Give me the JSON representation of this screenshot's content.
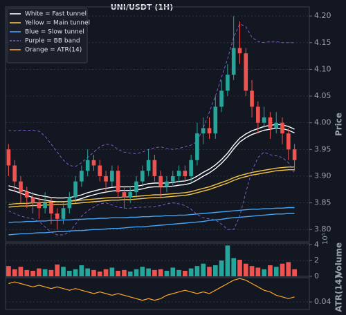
{
  "chart_data": [
    {
      "type": "candlestick",
      "title": "UNI/USDT (1H)",
      "y_label": "Price",
      "grid": true,
      "legend": "upper left",
      "up_color": "#26a69a",
      "down_color": "#ef5350",
      "ylim": [
        3.777,
        4.217
      ],
      "yticks": [
        {
          "value": 3.8,
          "label": "3.80"
        },
        3.85,
        {
          "value": 3.9,
          "label": "3.90"
        },
        3.95,
        {
          "value": 4.0,
          "label": "4.00"
        },
        4.05,
        {
          "value": 4.1,
          "label": "4.10"
        },
        4.15,
        {
          "value": 4.2,
          "label": "4.20"
        }
      ],
      "open": [
        3.95,
        3.92,
        3.89,
        3.87,
        3.86,
        3.85,
        3.84,
        3.85,
        3.83,
        3.82,
        3.84,
        3.86,
        3.89,
        3.91,
        3.93,
        3.92,
        3.9,
        3.89,
        3.91,
        3.87,
        3.86,
        3.87,
        3.89,
        3.91,
        3.93,
        3.9,
        3.88,
        3.89,
        3.9,
        3.91,
        3.9,
        3.93,
        3.98,
        3.99,
        3.98,
        4.03,
        4.06,
        4.09,
        4.14,
        4.13,
        4.06,
        4.03,
        4.0,
        4.01,
        3.99,
        4.0,
        3.98,
        3.95
      ],
      "high": [
        3.96,
        3.93,
        3.9,
        3.88,
        3.87,
        3.86,
        3.87,
        3.86,
        3.84,
        3.85,
        3.87,
        3.9,
        3.92,
        3.95,
        3.94,
        3.93,
        3.91,
        3.92,
        3.92,
        3.88,
        3.88,
        3.9,
        3.92,
        3.95,
        3.94,
        3.91,
        3.9,
        3.91,
        3.92,
        3.92,
        3.94,
        4.0,
        4.01,
        4.01,
        4.05,
        4.08,
        4.11,
        4.2,
        4.19,
        4.14,
        4.08,
        4.04,
        4.03,
        4.02,
        4.02,
        4.01,
        3.99,
        3.96
      ],
      "low": [
        3.9,
        3.87,
        3.85,
        3.84,
        3.83,
        3.82,
        3.83,
        3.81,
        3.8,
        3.81,
        3.83,
        3.85,
        3.88,
        3.9,
        3.91,
        3.89,
        3.87,
        3.88,
        3.86,
        3.84,
        3.85,
        3.86,
        3.88,
        3.9,
        3.89,
        3.86,
        3.87,
        3.88,
        3.89,
        3.89,
        3.89,
        3.92,
        3.96,
        3.97,
        3.97,
        4.02,
        4.05,
        4.08,
        4.11,
        4.05,
        4.01,
        3.98,
        3.99,
        3.97,
        3.98,
        3.96,
        3.93,
        3.91
      ],
      "close": [
        3.92,
        3.89,
        3.87,
        3.86,
        3.85,
        3.84,
        3.85,
        3.83,
        3.82,
        3.84,
        3.86,
        3.89,
        3.91,
        3.93,
        3.92,
        3.9,
        3.89,
        3.91,
        3.87,
        3.86,
        3.87,
        3.89,
        3.91,
        3.93,
        3.9,
        3.88,
        3.89,
        3.9,
        3.91,
        3.9,
        3.93,
        3.98,
        3.99,
        3.98,
        4.03,
        4.06,
        4.09,
        4.14,
        4.13,
        4.06,
        4.03,
        4.0,
        4.01,
        3.99,
        4.0,
        3.98,
        3.95,
        3.93
      ],
      "overlays": [
        {
          "name": "White = Fast tunnel",
          "color": "#ffffff",
          "dashed": false,
          "upper": [
            3.882,
            3.879,
            3.875,
            3.871,
            3.867,
            3.864,
            3.862,
            3.86,
            3.859,
            3.859,
            3.86,
            3.862,
            3.865,
            3.869,
            3.872,
            3.875,
            3.877,
            3.879,
            3.88,
            3.88,
            3.88,
            3.881,
            3.883,
            3.886,
            3.887,
            3.887,
            3.887,
            3.888,
            3.89,
            3.891,
            3.894,
            3.9,
            3.907,
            3.913,
            3.921,
            3.931,
            3.943,
            3.958,
            3.971,
            3.979,
            3.985,
            3.989,
            3.993,
            3.995,
            3.997,
            3.996,
            3.993,
            3.988
          ],
          "lower": [
            3.875,
            3.872,
            3.868,
            3.864,
            3.86,
            3.857,
            3.855,
            3.853,
            3.852,
            3.852,
            3.853,
            3.855,
            3.858,
            3.862,
            3.865,
            3.868,
            3.87,
            3.872,
            3.873,
            3.873,
            3.873,
            3.874,
            3.876,
            3.879,
            3.88,
            3.88,
            3.88,
            3.881,
            3.883,
            3.884,
            3.887,
            3.893,
            3.9,
            3.906,
            3.914,
            3.924,
            3.936,
            3.951,
            3.964,
            3.972,
            3.978,
            3.982,
            3.986,
            3.988,
            3.99,
            3.989,
            3.986,
            3.981
          ]
        },
        {
          "name": "Yellow = Main tunnel",
          "color": "#f5c542",
          "dashed": false,
          "upper": [
            3.847,
            3.848,
            3.849,
            3.849,
            3.85,
            3.85,
            3.851,
            3.851,
            3.852,
            3.852,
            3.853,
            3.854,
            3.855,
            3.856,
            3.857,
            3.858,
            3.859,
            3.86,
            3.86,
            3.861,
            3.861,
            3.862,
            3.863,
            3.864,
            3.865,
            3.865,
            3.866,
            3.867,
            3.868,
            3.869,
            3.871,
            3.874,
            3.877,
            3.88,
            3.884,
            3.888,
            3.892,
            3.897,
            3.901,
            3.904,
            3.907,
            3.909,
            3.911,
            3.913,
            3.915,
            3.916,
            3.917,
            3.917
          ],
          "lower": [
            3.842,
            3.843,
            3.844,
            3.844,
            3.845,
            3.845,
            3.846,
            3.846,
            3.847,
            3.847,
            3.848,
            3.849,
            3.85,
            3.851,
            3.852,
            3.853,
            3.854,
            3.855,
            3.855,
            3.856,
            3.856,
            3.857,
            3.858,
            3.859,
            3.86,
            3.86,
            3.861,
            3.862,
            3.863,
            3.864,
            3.866,
            3.869,
            3.872,
            3.875,
            3.879,
            3.883,
            3.887,
            3.892,
            3.896,
            3.899,
            3.902,
            3.904,
            3.906,
            3.908,
            3.91,
            3.911,
            3.912,
            3.912
          ]
        },
        {
          "name": "Blue = Slow tunnel",
          "color": "#42a5f5",
          "dashed": false,
          "upper": [
            3.813,
            3.814,
            3.814,
            3.815,
            3.815,
            3.816,
            3.816,
            3.817,
            3.817,
            3.818,
            3.818,
            3.819,
            3.819,
            3.82,
            3.82,
            3.821,
            3.821,
            3.822,
            3.822,
            3.822,
            3.823,
            3.823,
            3.824,
            3.824,
            3.825,
            3.825,
            3.826,
            3.826,
            3.827,
            3.827,
            3.828,
            3.829,
            3.83,
            3.831,
            3.832,
            3.833,
            3.834,
            3.835,
            3.836,
            3.837,
            3.838,
            3.838,
            3.839,
            3.839,
            3.84,
            3.84,
            3.841,
            3.841
          ],
          "lower": [
            3.79,
            3.791,
            3.792,
            3.792,
            3.793,
            3.794,
            3.794,
            3.795,
            3.796,
            3.796,
            3.797,
            3.798,
            3.798,
            3.799,
            3.8,
            3.8,
            3.801,
            3.802,
            3.802,
            3.803,
            3.804,
            3.805,
            3.805,
            3.806,
            3.807,
            3.808,
            3.809,
            3.81,
            3.811,
            3.812,
            3.813,
            3.814,
            3.815,
            3.817,
            3.818,
            3.819,
            3.821,
            3.822,
            3.823,
            3.824,
            3.825,
            3.826,
            3.827,
            3.828,
            3.829,
            3.829,
            3.83,
            3.83
          ]
        },
        {
          "name": "Purple = BB band",
          "color": "#8a63d2",
          "dashed": true,
          "upper": [
            3.985,
            3.985,
            3.986,
            3.986,
            3.986,
            3.984,
            3.975,
            3.96,
            3.945,
            3.93,
            3.92,
            3.918,
            3.925,
            3.935,
            3.945,
            3.955,
            3.96,
            3.958,
            3.95,
            3.945,
            3.943,
            3.942,
            3.945,
            3.95,
            3.953,
            3.955,
            3.952,
            3.95,
            3.952,
            3.955,
            3.958,
            3.965,
            3.99,
            4.02,
            4.05,
            4.085,
            4.12,
            4.16,
            4.185,
            4.18,
            4.16,
            4.152,
            4.15,
            4.152,
            4.152,
            4.15,
            4.15,
            4.15
          ],
          "lower": [
            3.835,
            3.83,
            3.825,
            3.822,
            3.82,
            3.815,
            3.805,
            3.795,
            3.79,
            3.79,
            3.795,
            3.81,
            3.825,
            3.835,
            3.842,
            3.848,
            3.85,
            3.846,
            3.842,
            3.84,
            3.84,
            3.841,
            3.842,
            3.842,
            3.843,
            3.845,
            3.848,
            3.85,
            3.848,
            3.845,
            3.838,
            3.828,
            3.822,
            3.82,
            3.818,
            3.81,
            3.8,
            3.8,
            3.825,
            3.87,
            3.91,
            3.935,
            3.945,
            3.94,
            3.938,
            3.935,
            3.925,
            3.905
          ]
        }
      ]
    },
    {
      "type": "bar",
      "y_label": "Volume",
      "offset_label": "10⁵",
      "grid": true,
      "ylim": [
        0,
        4.2
      ],
      "yticks": [
        0,
        2,
        4
      ],
      "values": [
        1.3,
        0.9,
        1.2,
        0.8,
        0.7,
        1.0,
        0.9,
        0.8,
        1.5,
        1.2,
        0.7,
        0.9,
        1.4,
        1.0,
        0.8,
        0.6,
        0.9,
        1.1,
        0.7,
        0.8,
        0.6,
        0.9,
        1.2,
        1.0,
        0.8,
        0.9,
        0.7,
        1.1,
        0.8,
        0.7,
        1.0,
        1.3,
        1.6,
        1.2,
        1.4,
        2.0,
        3.9,
        2.3,
        2.1,
        1.6,
        1.3,
        1.1,
        0.9,
        1.4,
        1.2,
        1.6,
        1.8,
        0.9
      ]
    },
    {
      "type": "line",
      "name": "Orange = ATR(14)",
      "y_label": "ATR(14)",
      "color": "#ffa726",
      "grid": true,
      "ylim": [
        0.0355,
        0.0545
      ],
      "yticks": [
        0.04
      ],
      "values": [
        0.051,
        0.052,
        0.051,
        0.05,
        0.049,
        0.05,
        0.049,
        0.048,
        0.049,
        0.048,
        0.047,
        0.048,
        0.047,
        0.046,
        0.045,
        0.046,
        0.045,
        0.044,
        0.045,
        0.044,
        0.043,
        0.042,
        0.041,
        0.042,
        0.041,
        0.042,
        0.044,
        0.045,
        0.046,
        0.047,
        0.046,
        0.045,
        0.046,
        0.045,
        0.047,
        0.049,
        0.051,
        0.053,
        0.054,
        0.053,
        0.051,
        0.049,
        0.047,
        0.046,
        0.044,
        0.043,
        0.042,
        0.043
      ]
    }
  ]
}
